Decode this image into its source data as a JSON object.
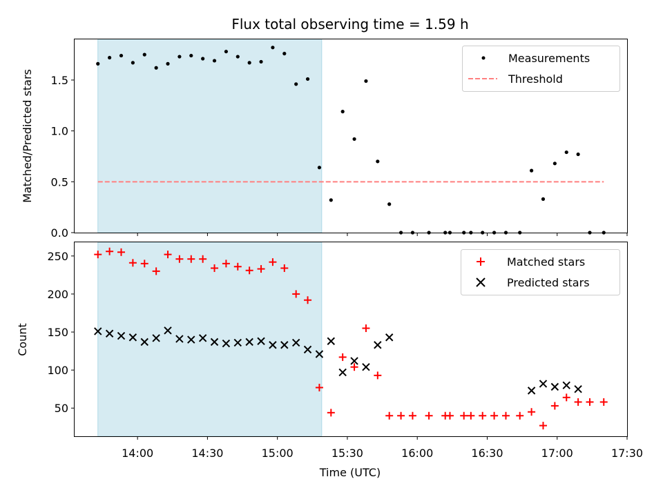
{
  "chart_data": [
    {
      "type": "scatter",
      "title": "Flux total observing time = 1.59 h",
      "xlabel": "",
      "ylabel": "Matched/Predicted stars",
      "ylim": [
        0,
        1.9
      ],
      "xlim": [
        "13:33",
        "17:30"
      ],
      "yticks": [
        "0.0",
        "0.5",
        "1.0",
        "1.5"
      ],
      "shaded_span": [
        "13:43",
        "15:19"
      ],
      "legend_position": "top-right",
      "series": [
        {
          "name": "Measurements",
          "marker": "dot",
          "color": "#000000",
          "x": [
            "13:43",
            "13:48",
            "13:53",
            "13:58",
            "14:03",
            "14:08",
            "14:13",
            "14:18",
            "14:23",
            "14:28",
            "14:33",
            "14:38",
            "14:43",
            "14:48",
            "14:53",
            "14:58",
            "15:03",
            "15:08",
            "15:13",
            "15:18",
            "15:23",
            "15:28",
            "15:33",
            "15:38",
            "15:43",
            "15:48",
            "15:53",
            "15:58",
            "16:05",
            "16:12",
            "16:14",
            "16:20",
            "16:23",
            "16:28",
            "16:33",
            "16:38",
            "16:44",
            "16:49",
            "16:54",
            "16:59",
            "17:04",
            "17:09",
            "17:14",
            "17:20"
          ],
          "y": [
            1.66,
            1.72,
            1.74,
            1.67,
            1.75,
            1.62,
            1.66,
            1.73,
            1.74,
            1.71,
            1.69,
            1.78,
            1.73,
            1.67,
            1.68,
            1.82,
            1.76,
            1.46,
            1.51,
            0.64,
            0.32,
            1.19,
            0.92,
            1.49,
            0.7,
            0.28,
            0,
            0,
            0,
            0,
            0,
            0,
            0,
            0,
            0,
            0,
            0,
            0.61,
            0.33,
            0.68,
            0.79,
            0.77,
            0,
            0
          ]
        },
        {
          "name": "Threshold",
          "marker": "dashed-line",
          "color": "#ff7f7f",
          "x": [
            "13:43",
            "17:20"
          ],
          "y": [
            0.5,
            0.5
          ]
        }
      ]
    },
    {
      "type": "scatter",
      "title": "",
      "xlabel": "Time (UTC)",
      "ylabel": "Count",
      "ylim": [
        13,
        268
      ],
      "xlim": [
        "13:33",
        "17:30"
      ],
      "xticks": [
        "14:00",
        "14:30",
        "15:00",
        "15:30",
        "16:00",
        "16:30",
        "17:00",
        "17:30"
      ],
      "yticks": [
        "50",
        "100",
        "150",
        "200",
        "250"
      ],
      "shaded_span": [
        "13:43",
        "15:19"
      ],
      "legend_position": "top-right",
      "series": [
        {
          "name": "Matched stars",
          "marker": "plus",
          "color": "#ff0000",
          "x": [
            "13:43",
            "13:48",
            "13:53",
            "13:58",
            "14:03",
            "14:08",
            "14:13",
            "14:18",
            "14:23",
            "14:28",
            "14:33",
            "14:38",
            "14:43",
            "14:48",
            "14:53",
            "14:58",
            "15:03",
            "15:08",
            "15:13",
            "15:18",
            "15:23",
            "15:28",
            "15:33",
            "15:38",
            "15:43",
            "15:48",
            "15:53",
            "15:58",
            "16:05",
            "16:12",
            "16:14",
            "16:20",
            "16:23",
            "16:28",
            "16:33",
            "16:38",
            "16:44",
            "16:49",
            "16:54",
            "16:59",
            "17:04",
            "17:09",
            "17:14",
            "17:20"
          ],
          "y": [
            252,
            256,
            255,
            241,
            240,
            230,
            252,
            246,
            246,
            246,
            234,
            240,
            236,
            231,
            233,
            242,
            234,
            200,
            192,
            77,
            44,
            117,
            104,
            155,
            93,
            40,
            40,
            40,
            40,
            40,
            40,
            40,
            40,
            40,
            40,
            40,
            40,
            45,
            27,
            53,
            64,
            58,
            58,
            58
          ]
        },
        {
          "name": "Predicted stars",
          "marker": "x",
          "color": "#000000",
          "x": [
            "13:43",
            "13:48",
            "13:53",
            "13:58",
            "14:03",
            "14:08",
            "14:13",
            "14:18",
            "14:23",
            "14:28",
            "14:33",
            "14:38",
            "14:43",
            "14:48",
            "14:53",
            "14:58",
            "15:03",
            "15:08",
            "15:13",
            "15:18",
            "15:23",
            "15:28",
            "15:33",
            "15:38",
            "15:43",
            "15:48",
            "16:49",
            "16:54",
            "16:59",
            "17:04",
            "17:09"
          ],
          "y": [
            151,
            148,
            145,
            143,
            137,
            142,
            152,
            141,
            140,
            142,
            137,
            135,
            136,
            137,
            138,
            133,
            133,
            136,
            127,
            121,
            138,
            97,
            112,
            104,
            133,
            143,
            73,
            82,
            78,
            80,
            75
          ]
        }
      ]
    }
  ]
}
